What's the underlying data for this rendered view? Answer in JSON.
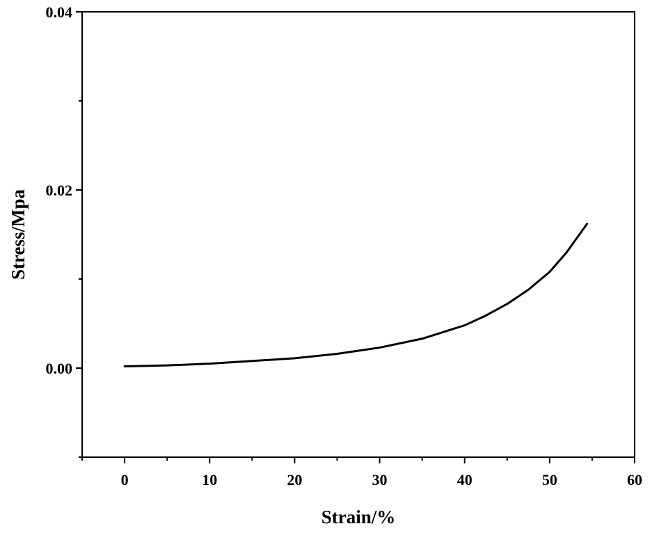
{
  "chart_data": {
    "type": "line",
    "title": "",
    "xlabel": "Strain/%",
    "ylabel": "Stress/Mpa",
    "xlim": [
      -5,
      60
    ],
    "ylim": [
      -0.01,
      0.04
    ],
    "x_ticks": [
      0,
      10,
      20,
      30,
      40,
      50,
      60
    ],
    "x_tick_labels": [
      "0",
      "10",
      "20",
      "30",
      "40",
      "50",
      "60"
    ],
    "x_minor_step": 5,
    "y_ticks": [
      0.0,
      0.02,
      0.04
    ],
    "y_tick_labels": [
      "0.00",
      "0.02",
      "0.04"
    ],
    "y_minor_step": 0.01,
    "grid": false,
    "legend": "none",
    "line_color": "#000000",
    "series": [
      {
        "x": [
          0,
          5,
          10,
          15,
          20,
          25,
          30,
          35,
          40,
          42.5,
          45,
          47.5,
          50,
          52,
          54.4
        ],
        "y": [
          0.0002,
          0.0003,
          0.0005,
          0.0008,
          0.0011,
          0.0016,
          0.0023,
          0.0033,
          0.0048,
          0.0059,
          0.0072,
          0.0088,
          0.0108,
          0.013,
          0.0162
        ]
      }
    ]
  }
}
